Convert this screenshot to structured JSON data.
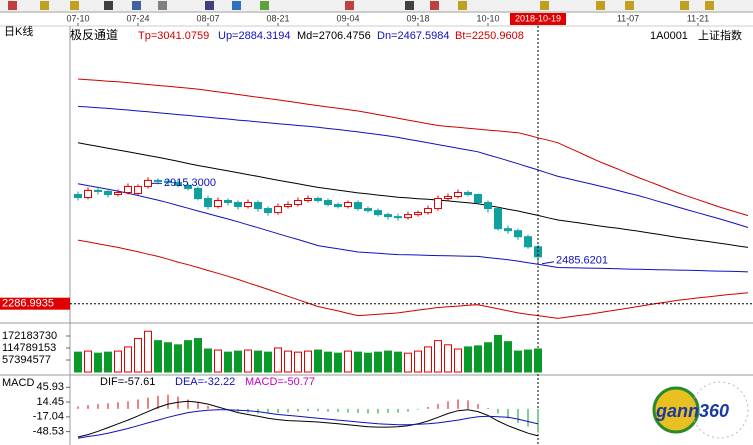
{
  "chart_data": {
    "type": "candlestick",
    "period": "日K线",
    "title": "极反通道",
    "symbol": "1A0001",
    "symbol_name": "上证指数",
    "watermark": "gann360",
    "up_color": "#e00000",
    "down_color": "#10a0a0",
    "categories": [
      "07-10",
      null,
      null,
      null,
      null,
      null,
      "07-24",
      null,
      null,
      null,
      null,
      null,
      null,
      "08-07",
      null,
      null,
      null,
      null,
      null,
      null,
      "08-21",
      null,
      null,
      null,
      null,
      null,
      null,
      "09-04",
      null,
      null,
      null,
      null,
      null,
      null,
      "09-18",
      null,
      null,
      null,
      null,
      null,
      null,
      "10-10",
      null,
      null,
      null,
      null,
      "2018-10-19",
      null,
      null,
      null,
      null,
      null,
      null,
      null,
      null,
      "11-07",
      null,
      null,
      null,
      null,
      null,
      null,
      "11-21",
      null,
      null,
      null,
      null,
      null
    ],
    "ylim": [
      2196,
      3598
    ],
    "candles": {
      "open": [
        2830,
        2815,
        2850,
        2845,
        2830,
        2840,
        2835,
        2870,
        2900,
        2895,
        2890,
        2875,
        2860,
        2810,
        2770,
        2800,
        2790,
        2770,
        2790,
        2760,
        2740,
        2770,
        2780,
        2800,
        2810,
        2800,
        2780,
        2770,
        2790,
        2760,
        2750,
        2730,
        2720,
        2715,
        2730,
        2740,
        2760,
        2810,
        2820,
        2840,
        2830,
        2790,
        2760,
        2660,
        2650,
        2620,
        2570
      ],
      "high": [
        2845,
        2865,
        2870,
        2860,
        2855,
        2885,
        2880,
        2915.3,
        2910,
        2905,
        2900,
        2885,
        2870,
        2825,
        2815,
        2810,
        2800,
        2805,
        2800,
        2770,
        2785,
        2795,
        2815,
        2825,
        2820,
        2810,
        2790,
        2800,
        2800,
        2770,
        2760,
        2740,
        2735,
        2745,
        2750,
        2775,
        2825,
        2835,
        2855,
        2850,
        2835,
        2800,
        2770,
        2675,
        2660,
        2630,
        2580
      ],
      "low": [
        2800,
        2805,
        2830,
        2815,
        2820,
        2830,
        2825,
        2860,
        2880,
        2875,
        2865,
        2850,
        2800,
        2755,
        2760,
        2775,
        2755,
        2760,
        2745,
        2725,
        2730,
        2760,
        2770,
        2790,
        2790,
        2770,
        2760,
        2760,
        2750,
        2740,
        2720,
        2705,
        2700,
        2705,
        2720,
        2730,
        2750,
        2800,
        2810,
        2820,
        2785,
        2740,
        2650,
        2635,
        2605,
        2560,
        2485.6201
      ],
      "close": [
        2815,
        2850,
        2845,
        2830,
        2840,
        2870,
        2870,
        2900,
        2895,
        2890,
        2875,
        2860,
        2810,
        2770,
        2800,
        2790,
        2770,
        2790,
        2760,
        2740,
        2770,
        2780,
        2800,
        2810,
        2800,
        2780,
        2770,
        2790,
        2760,
        2750,
        2730,
        2720,
        2715,
        2730,
        2740,
        2760,
        2810,
        2820,
        2840,
        2830,
        2790,
        2760,
        2660,
        2650,
        2620,
        2570,
        2520
      ]
    },
    "series": [
      {
        "name": "Tp=3041.0759",
        "color": "#d00000",
        "values": [
          3404,
          3400,
          3397,
          3393,
          3390,
          3386,
          3381,
          3377,
          3372,
          3368,
          3363,
          3359,
          3354,
          3347,
          3340,
          3334,
          3327,
          3320,
          3313,
          3307,
          3300,
          3293,
          3286,
          3279,
          3272,
          3265,
          3259,
          3252,
          3245,
          3236,
          3227,
          3218,
          3209,
          3200,
          3191,
          3182,
          3173,
          3168,
          3164,
          3159,
          3155,
          3150,
          3146,
          3141,
          3137,
          3125,
          3112,
          3100,
          3087,
          3064,
          3042,
          3019,
          2996,
          2976,
          2956,
          2935,
          2915,
          2896,
          2877,
          2857,
          2838,
          2821,
          2804,
          2787,
          2770,
          2755,
          2740,
          2725
        ]
      },
      {
        "name": "Up=2884.3194",
        "color": "#1010c0",
        "values": [
          3268,
          3265,
          3261,
          3258,
          3254,
          3250,
          3245,
          3241,
          3236,
          3232,
          3227,
          3223,
          3218,
          3214,
          3209,
          3205,
          3200,
          3196,
          3191,
          3187,
          3182,
          3178,
          3173,
          3169,
          3164,
          3158,
          3153,
          3147,
          3141,
          3134,
          3128,
          3121,
          3114,
          3105,
          3096,
          3087,
          3078,
          3069,
          3060,
          3051,
          3042,
          3027,
          3013,
          2998,
          2983,
          2967,
          2952,
          2936,
          2920,
          2909,
          2897,
          2886,
          2874,
          2862,
          2850,
          2837,
          2825,
          2811,
          2796,
          2782,
          2767,
          2753,
          2739,
          2725,
          2711,
          2696,
          2681,
          2666
        ]
      },
      {
        "name": "Md=2706.4756",
        "color": "#000000",
        "values": [
          3087,
          3078,
          3069,
          3060,
          3051,
          3042,
          3033,
          3024,
          3015,
          3005,
          2995,
          2984,
          2974,
          2965,
          2956,
          2947,
          2938,
          2929,
          2920,
          2910,
          2901,
          2892,
          2883,
          2874,
          2865,
          2858,
          2852,
          2845,
          2838,
          2833,
          2827,
          2822,
          2816,
          2813,
          2809,
          2806,
          2802,
          2798,
          2793,
          2789,
          2784,
          2775,
          2766,
          2757,
          2748,
          2737,
          2726,
          2714,
          2703,
          2696,
          2689,
          2682,
          2675,
          2668,
          2662,
          2655,
          2648,
          2640,
          2632,
          2624,
          2616,
          2609,
          2602,
          2596,
          2589,
          2582,
          2574,
          2567
        ]
      },
      {
        "name": "Dn=2467.5984",
        "color": "#1010c0",
        "values": [
          2883,
          2874,
          2865,
          2856,
          2847,
          2836,
          2825,
          2813,
          2802,
          2789,
          2775,
          2762,
          2748,
          2735,
          2721,
          2708,
          2694,
          2679,
          2665,
          2650,
          2635,
          2620,
          2606,
          2591,
          2576,
          2568,
          2560,
          2552,
          2544,
          2541,
          2538,
          2534,
          2531,
          2530,
          2529,
          2527,
          2526,
          2525,
          2524,
          2523,
          2522,
          2516,
          2511,
          2505,
          2499,
          2491,
          2483,
          2475,
          2467,
          2466,
          2465,
          2464,
          2463,
          2462,
          2461,
          2459,
          2458,
          2457,
          2456,
          2455,
          2454,
          2453,
          2452,
          2450,
          2449,
          2448,
          2447,
          2445
        ]
      },
      {
        "name": "Bt=2250.9608",
        "color": "#d00000",
        "values": [
          2603,
          2594,
          2585,
          2576,
          2567,
          2556,
          2545,
          2533,
          2522,
          2508,
          2494,
          2481,
          2467,
          2452,
          2438,
          2423,
          2408,
          2391,
          2375,
          2358,
          2341,
          2324,
          2307,
          2290,
          2273,
          2262,
          2251,
          2239,
          2228,
          2231,
          2235,
          2238,
          2241,
          2248,
          2255,
          2261,
          2268,
          2272,
          2275,
          2279,
          2282,
          2272,
          2262,
          2251,
          2241,
          2234,
          2228,
          2221,
          2214,
          2221,
          2228,
          2234,
          2241,
          2249,
          2257,
          2265,
          2273,
          2281,
          2289,
          2296,
          2304,
          2310,
          2316,
          2321,
          2327,
          2332,
          2336,
          2341
        ]
      }
    ],
    "high_label": {
      "value": 2915.3,
      "label": "2915.3000"
    },
    "low_label": 2485.6201,
    "cursor_price": 2286.9935,
    "volume": {
      "ylim": [
        0,
        229578306
      ],
      "yticks": [
        57394577,
        114789153,
        172183730
      ],
      "values": [
        95000000,
        100000000,
        90000000,
        95000000,
        100000000,
        120000000,
        160000000,
        195000000,
        150000000,
        140000000,
        130000000,
        150000000,
        160000000,
        110000000,
        105000000,
        95000000,
        100000000,
        105000000,
        100000000,
        95000000,
        115000000,
        100000000,
        95000000,
        100000000,
        105000000,
        95000000,
        90000000,
        100000000,
        95000000,
        90000000,
        95000000,
        100000000,
        95000000,
        90000000,
        100000000,
        120000000,
        150000000,
        130000000,
        110000000,
        120000000,
        125000000,
        140000000,
        175000000,
        145000000,
        100000000,
        105000000,
        110000000
      ]
    },
    "macd": {
      "title": "MACD",
      "ylim": [
        -77.1,
        65.71
      ],
      "yticks": [
        45.93,
        14.45,
        -17.04,
        -48.53
      ],
      "legend": [
        {
          "name": "DIF=-57.61",
          "color": "#000000"
        },
        {
          "name": "DEA=-32.22",
          "color": "#1010c0"
        },
        {
          "name": "MACD=-50.77",
          "color": "#c000c0"
        }
      ],
      "dif": [
        -60,
        -55,
        -48,
        -40,
        -32,
        -24,
        -15,
        -6,
        3,
        10,
        14,
        16,
        14,
        10,
        4,
        -2,
        -8,
        -12,
        -16,
        -20,
        -23,
        -25,
        -26,
        -27,
        -28,
        -30,
        -32,
        -34,
        -36,
        -38,
        -39,
        -39,
        -38,
        -36,
        -32,
        -26,
        -18,
        -10,
        -4,
        -2,
        -6,
        -14,
        -26,
        -36,
        -44,
        -52,
        -57.61
      ],
      "dea": [
        -62.5,
        -59,
        -56,
        -52,
        -47,
        -42,
        -36,
        -30,
        -24,
        -18,
        -13,
        -8,
        -5,
        -3,
        -2,
        -2,
        -3,
        -4,
        -6,
        -9,
        -12,
        -14,
        -16,
        -18,
        -20,
        -22,
        -24,
        -26,
        -28,
        -30,
        -32,
        -33,
        -34,
        -34,
        -33,
        -32,
        -30,
        -27,
        -24,
        -20,
        -17,
        -16,
        -17,
        -18,
        -22,
        -27,
        -32.22
      ],
      "hist": [
        5,
        8,
        10,
        12,
        14,
        16,
        20,
        24,
        28,
        30,
        26,
        20,
        14,
        6,
        -2,
        -4,
        -6,
        -8,
        -10,
        -10,
        -9,
        -8,
        -6,
        -5,
        -5,
        -6,
        -7,
        -8,
        -9,
        -10,
        -10,
        -9,
        -8,
        -6,
        -2,
        4,
        10,
        16,
        20,
        18,
        10,
        2,
        -10,
        -20,
        -30,
        -38,
        -50.77
      ]
    }
  }
}
